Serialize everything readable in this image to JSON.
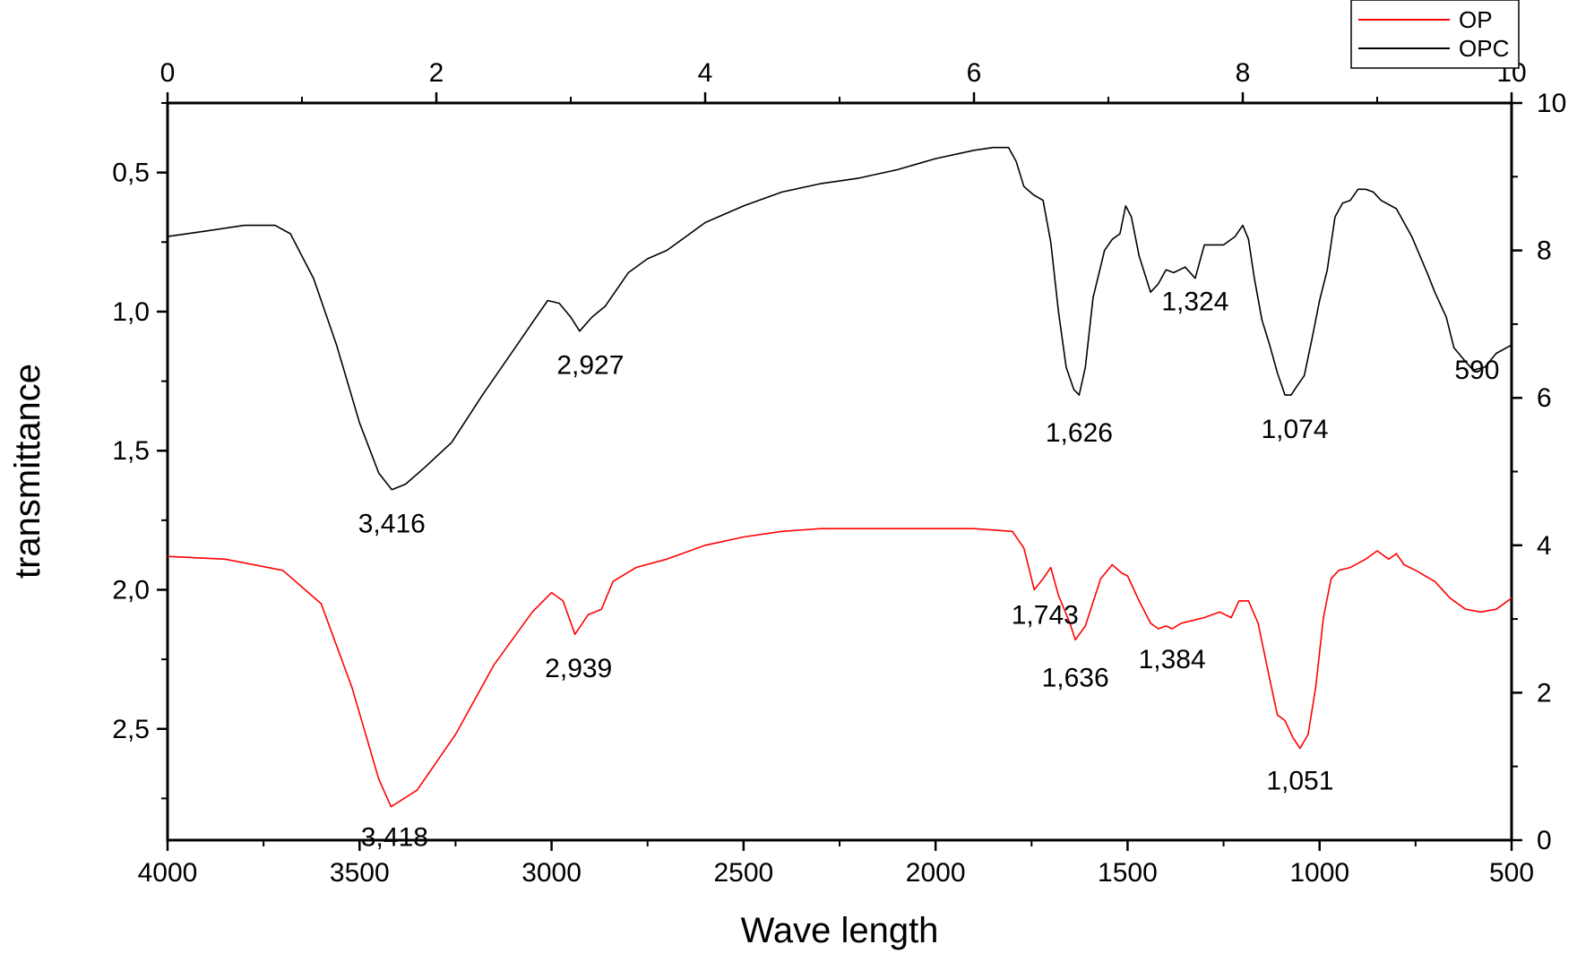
{
  "chart_data": {
    "type": "line",
    "title": "",
    "xlabel": "Wave length",
    "ylabel": "transmittance",
    "x_reversed": true,
    "xlim": [
      4000,
      500
    ],
    "ylim": [
      0.25,
      2.9
    ],
    "x_ticks": [
      4000,
      3500,
      3000,
      2500,
      2000,
      1500,
      1000,
      500
    ],
    "y_ticks": [
      0.5,
      1.0,
      1.5,
      2.0,
      2.5
    ],
    "y_tick_labels": [
      "0,5",
      "1,0",
      "1,5",
      "2,0",
      "2,5"
    ],
    "top_axis": {
      "range": [
        0,
        10
      ],
      "ticks": [
        0,
        2,
        4,
        6,
        8,
        10
      ],
      "labels": [
        "0",
        "2",
        "4",
        "6",
        "8",
        "10"
      ]
    },
    "right_axis": {
      "range": [
        0,
        10
      ],
      "ticks": [
        0,
        2,
        4,
        6,
        8,
        10
      ],
      "labels": [
        "0",
        "2",
        "4",
        "6",
        "8",
        "10"
      ]
    },
    "legend_position": "top-right",
    "grid": false,
    "series": [
      {
        "name": "OP",
        "color": "#ff0000",
        "points": [
          [
            4000,
            1.88
          ],
          [
            3850,
            1.89
          ],
          [
            3700,
            1.93
          ],
          [
            3600,
            2.05
          ],
          [
            3520,
            2.35
          ],
          [
            3450,
            2.68
          ],
          [
            3418,
            2.78
          ],
          [
            3350,
            2.72
          ],
          [
            3250,
            2.52
          ],
          [
            3150,
            2.27
          ],
          [
            3050,
            2.08
          ],
          [
            3000,
            2.01
          ],
          [
            2970,
            2.04
          ],
          [
            2939,
            2.16
          ],
          [
            2905,
            2.09
          ],
          [
            2870,
            2.07
          ],
          [
            2840,
            1.97
          ],
          [
            2780,
            1.92
          ],
          [
            2700,
            1.89
          ],
          [
            2600,
            1.84
          ],
          [
            2500,
            1.81
          ],
          [
            2400,
            1.79
          ],
          [
            2300,
            1.78
          ],
          [
            2100,
            1.78
          ],
          [
            1900,
            1.78
          ],
          [
            1800,
            1.79
          ],
          [
            1770,
            1.85
          ],
          [
            1743,
            2.0
          ],
          [
            1720,
            1.96
          ],
          [
            1700,
            1.92
          ],
          [
            1680,
            2.02
          ],
          [
            1650,
            2.12
          ],
          [
            1636,
            2.18
          ],
          [
            1610,
            2.13
          ],
          [
            1570,
            1.96
          ],
          [
            1540,
            1.91
          ],
          [
            1515,
            1.94
          ],
          [
            1500,
            1.95
          ],
          [
            1470,
            2.04
          ],
          [
            1440,
            2.12
          ],
          [
            1420,
            2.14
          ],
          [
            1400,
            2.13
          ],
          [
            1384,
            2.14
          ],
          [
            1360,
            2.12
          ],
          [
            1300,
            2.1
          ],
          [
            1260,
            2.08
          ],
          [
            1230,
            2.1
          ],
          [
            1210,
            2.04
          ],
          [
            1185,
            2.04
          ],
          [
            1160,
            2.12
          ],
          [
            1130,
            2.32
          ],
          [
            1110,
            2.45
          ],
          [
            1090,
            2.47
          ],
          [
            1070,
            2.53
          ],
          [
            1051,
            2.57
          ],
          [
            1030,
            2.52
          ],
          [
            1010,
            2.35
          ],
          [
            990,
            2.1
          ],
          [
            970,
            1.96
          ],
          [
            950,
            1.93
          ],
          [
            920,
            1.92
          ],
          [
            880,
            1.89
          ],
          [
            850,
            1.86
          ],
          [
            820,
            1.89
          ],
          [
            800,
            1.87
          ],
          [
            780,
            1.91
          ],
          [
            750,
            1.93
          ],
          [
            700,
            1.97
          ],
          [
            660,
            2.03
          ],
          [
            620,
            2.07
          ],
          [
            580,
            2.08
          ],
          [
            540,
            2.07
          ],
          [
            500,
            2.03
          ]
        ]
      },
      {
        "name": "OPC",
        "color": "#000000",
        "points": [
          [
            4000,
            0.73
          ],
          [
            3900,
            0.71
          ],
          [
            3800,
            0.69
          ],
          [
            3720,
            0.69
          ],
          [
            3680,
            0.72
          ],
          [
            3620,
            0.88
          ],
          [
            3560,
            1.12
          ],
          [
            3500,
            1.4
          ],
          [
            3450,
            1.58
          ],
          [
            3416,
            1.64
          ],
          [
            3380,
            1.62
          ],
          [
            3330,
            1.56
          ],
          [
            3260,
            1.47
          ],
          [
            3180,
            1.3
          ],
          [
            3100,
            1.14
          ],
          [
            3040,
            1.02
          ],
          [
            3010,
            0.96
          ],
          [
            2980,
            0.97
          ],
          [
            2950,
            1.02
          ],
          [
            2927,
            1.07
          ],
          [
            2895,
            1.02
          ],
          [
            2860,
            0.98
          ],
          [
            2840,
            0.94
          ],
          [
            2800,
            0.86
          ],
          [
            2750,
            0.81
          ],
          [
            2700,
            0.78
          ],
          [
            2650,
            0.73
          ],
          [
            2600,
            0.68
          ],
          [
            2500,
            0.62
          ],
          [
            2400,
            0.57
          ],
          [
            2300,
            0.54
          ],
          [
            2200,
            0.52
          ],
          [
            2100,
            0.49
          ],
          [
            2000,
            0.45
          ],
          [
            1900,
            0.42
          ],
          [
            1850,
            0.41
          ],
          [
            1810,
            0.41
          ],
          [
            1790,
            0.46
          ],
          [
            1770,
            0.55
          ],
          [
            1745,
            0.58
          ],
          [
            1720,
            0.6
          ],
          [
            1700,
            0.75
          ],
          [
            1680,
            1.0
          ],
          [
            1660,
            1.2
          ],
          [
            1640,
            1.28
          ],
          [
            1626,
            1.3
          ],
          [
            1610,
            1.2
          ],
          [
            1590,
            0.95
          ],
          [
            1560,
            0.78
          ],
          [
            1540,
            0.74
          ],
          [
            1520,
            0.72
          ],
          [
            1505,
            0.62
          ],
          [
            1490,
            0.66
          ],
          [
            1470,
            0.8
          ],
          [
            1440,
            0.93
          ],
          [
            1420,
            0.9
          ],
          [
            1400,
            0.85
          ],
          [
            1380,
            0.86
          ],
          [
            1350,
            0.84
          ],
          [
            1324,
            0.88
          ],
          [
            1300,
            0.76
          ],
          [
            1250,
            0.76
          ],
          [
            1220,
            0.73
          ],
          [
            1200,
            0.69
          ],
          [
            1185,
            0.74
          ],
          [
            1170,
            0.88
          ],
          [
            1150,
            1.03
          ],
          [
            1130,
            1.12
          ],
          [
            1110,
            1.22
          ],
          [
            1090,
            1.3
          ],
          [
            1074,
            1.3
          ],
          [
            1060,
            1.27
          ],
          [
            1040,
            1.23
          ],
          [
            1020,
            1.1
          ],
          [
            1000,
            0.96
          ],
          [
            980,
            0.85
          ],
          [
            960,
            0.66
          ],
          [
            940,
            0.61
          ],
          [
            920,
            0.6
          ],
          [
            900,
            0.56
          ],
          [
            880,
            0.56
          ],
          [
            860,
            0.57
          ],
          [
            840,
            0.6
          ],
          [
            800,
            0.63
          ],
          [
            760,
            0.73
          ],
          [
            720,
            0.86
          ],
          [
            700,
            0.93
          ],
          [
            670,
            1.02
          ],
          [
            650,
            1.13
          ],
          [
            620,
            1.18
          ],
          [
            600,
            1.21
          ],
          [
            570,
            1.2
          ],
          [
            540,
            1.15
          ],
          [
            500,
            1.12
          ]
        ]
      }
    ],
    "annotations": [
      {
        "text": "3,416",
        "x": 3416,
        "y": 1.64,
        "series": "OPC"
      },
      {
        "text": "2,927",
        "x": 2927,
        "y": 1.07,
        "series": "OPC"
      },
      {
        "text": "1,626",
        "x": 1626,
        "y": 1.3,
        "series": "OPC"
      },
      {
        "text": "1,324",
        "x": 1324,
        "y": 0.88,
        "series": "OPC"
      },
      {
        "text": "1,074",
        "x": 1074,
        "y": 1.3,
        "series": "OPC"
      },
      {
        "text": "590",
        "x": 590,
        "y": 1.21,
        "series": "OPC"
      },
      {
        "text": "3,418",
        "x": 3418,
        "y": 2.78,
        "series": "OP"
      },
      {
        "text": "2,939",
        "x": 2939,
        "y": 2.16,
        "series": "OP"
      },
      {
        "text": "1,743",
        "x": 1743,
        "y": 2.0,
        "series": "OP"
      },
      {
        "text": "1,636",
        "x": 1636,
        "y": 2.18,
        "series": "OP"
      },
      {
        "text": "1,384",
        "x": 1384,
        "y": 2.14,
        "series": "OP"
      },
      {
        "text": "1,051",
        "x": 1051,
        "y": 2.57,
        "series": "OP"
      }
    ]
  }
}
